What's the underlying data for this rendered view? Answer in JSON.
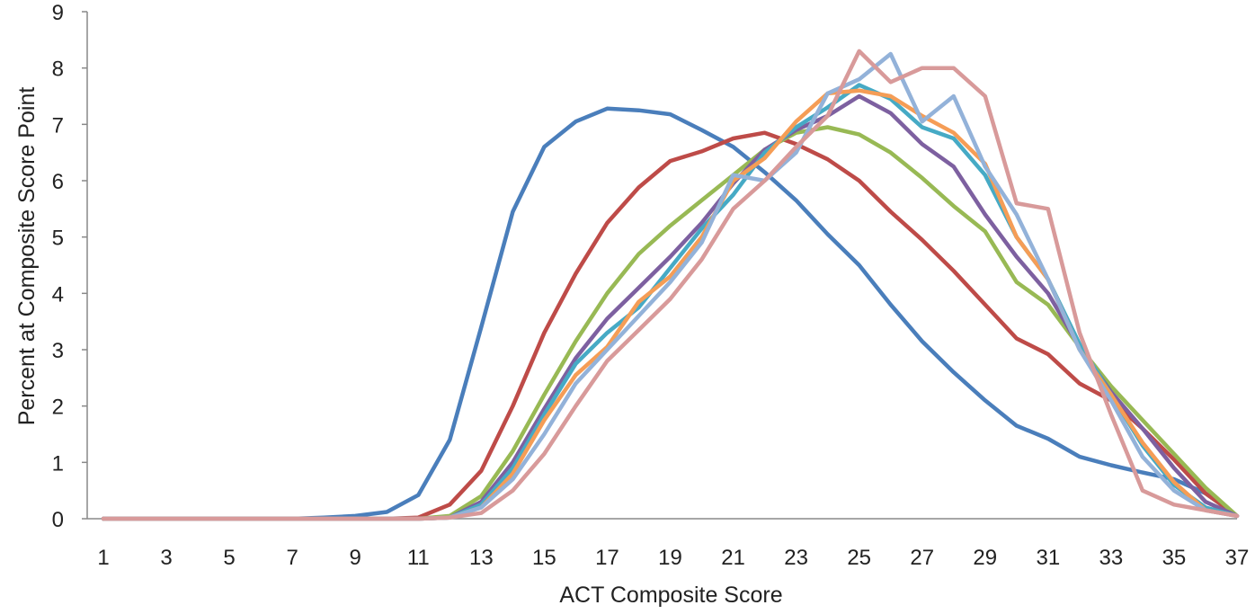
{
  "chart_data": {
    "type": "line",
    "title": "",
    "xlabel": "ACT Composite Score",
    "ylabel": "Percent at Composite Score Point",
    "xlim": [
      1,
      37
    ],
    "ylim": [
      0,
      9
    ],
    "x_ticks": [
      1,
      3,
      5,
      7,
      9,
      11,
      13,
      15,
      17,
      19,
      21,
      23,
      25,
      27,
      29,
      31,
      33,
      35,
      37
    ],
    "y_ticks": [
      0,
      1,
      2,
      3,
      4,
      5,
      6,
      7,
      8,
      9
    ],
    "grid": false,
    "legend": "none",
    "x": [
      1,
      2,
      3,
      4,
      5,
      6,
      7,
      8,
      9,
      10,
      11,
      12,
      13,
      14,
      15,
      16,
      17,
      18,
      19,
      20,
      21,
      22,
      23,
      24,
      25,
      26,
      27,
      28,
      29,
      30,
      31,
      32,
      33,
      34,
      35,
      36,
      37
    ],
    "series": [
      {
        "color": "#4a7ebb",
        "values": [
          0,
          0,
          0,
          0,
          0,
          0,
          0,
          0.02,
          0.05,
          0.12,
          0.42,
          1.4,
          3.4,
          5.45,
          6.6,
          7.05,
          7.28,
          7.25,
          7.18,
          6.9,
          6.6,
          6.15,
          5.65,
          5.05,
          4.5,
          3.8,
          3.15,
          2.6,
          2.1,
          1.65,
          1.42,
          1.1,
          0.95,
          0.82,
          0.7,
          0.45,
          0.05
        ]
      },
      {
        "color": "#be4b48",
        "values": [
          0,
          0,
          0,
          0,
          0,
          0,
          0,
          0,
          0,
          0,
          0.02,
          0.25,
          0.85,
          2.0,
          3.3,
          4.35,
          5.25,
          5.88,
          6.35,
          6.52,
          6.75,
          6.85,
          6.65,
          6.38,
          6.0,
          5.45,
          4.95,
          4.4,
          3.8,
          3.2,
          2.92,
          2.4,
          2.1,
          1.6,
          1.05,
          0.45,
          0.05
        ]
      },
      {
        "color": "#98b954",
        "values": [
          0,
          0,
          0,
          0,
          0,
          0,
          0,
          0,
          0,
          0,
          0,
          0.05,
          0.4,
          1.2,
          2.2,
          3.15,
          4.0,
          4.7,
          5.2,
          5.65,
          6.1,
          6.55,
          6.85,
          6.95,
          6.82,
          6.5,
          6.05,
          5.55,
          5.1,
          4.2,
          3.8,
          3.05,
          2.35,
          1.75,
          1.15,
          0.55,
          0.05
        ]
      },
      {
        "color": "#7d60a0",
        "values": [
          0,
          0,
          0,
          0,
          0,
          0,
          0,
          0,
          0,
          0,
          0,
          0.02,
          0.3,
          1.0,
          1.95,
          2.85,
          3.55,
          4.1,
          4.65,
          5.25,
          5.95,
          6.55,
          6.9,
          7.15,
          7.5,
          7.2,
          6.65,
          6.25,
          5.4,
          4.65,
          4.0,
          3.05,
          2.25,
          1.6,
          0.9,
          0.3,
          0.05
        ]
      },
      {
        "color": "#46aac5",
        "values": [
          0,
          0,
          0,
          0,
          0,
          0,
          0,
          0,
          0,
          0,
          0,
          0.02,
          0.25,
          0.9,
          1.85,
          2.75,
          3.3,
          3.75,
          4.45,
          5.15,
          5.75,
          6.5,
          6.95,
          7.3,
          7.7,
          7.45,
          6.95,
          6.75,
          6.1,
          5.0,
          4.25,
          3.1,
          2.2,
          1.3,
          0.6,
          0.2,
          0.05
        ]
      },
      {
        "color": "#f59d56",
        "values": [
          0,
          0,
          0,
          0,
          0,
          0,
          0,
          0,
          0,
          0,
          0,
          0.02,
          0.2,
          0.8,
          1.75,
          2.55,
          3.05,
          3.85,
          4.3,
          5.0,
          6.0,
          6.4,
          7.05,
          7.55,
          7.6,
          7.5,
          7.15,
          6.85,
          6.3,
          5.0,
          4.25,
          3.0,
          2.2,
          1.35,
          0.65,
          0.15,
          0.05
        ]
      },
      {
        "color": "#93b2d9",
        "values": [
          0,
          0,
          0,
          0,
          0,
          0,
          0,
          0,
          0,
          0,
          0,
          0.02,
          0.2,
          0.7,
          1.5,
          2.4,
          3.0,
          3.6,
          4.2,
          4.9,
          6.1,
          6.0,
          6.5,
          7.55,
          7.8,
          8.25,
          7.05,
          7.5,
          6.25,
          5.4,
          4.25,
          3.0,
          2.1,
          1.1,
          0.5,
          0.15,
          0.05
        ]
      },
      {
        "color": "#d89a9a",
        "values": [
          0,
          0,
          0,
          0,
          0,
          0,
          0,
          0,
          0,
          0,
          0,
          0.02,
          0.1,
          0.5,
          1.15,
          2.0,
          2.8,
          3.35,
          3.9,
          4.6,
          5.5,
          6.0,
          6.6,
          7.15,
          8.3,
          7.75,
          8.0,
          8.0,
          7.5,
          5.6,
          5.5,
          3.3,
          1.85,
          0.5,
          0.25,
          0.15,
          0.05
        ]
      }
    ]
  }
}
